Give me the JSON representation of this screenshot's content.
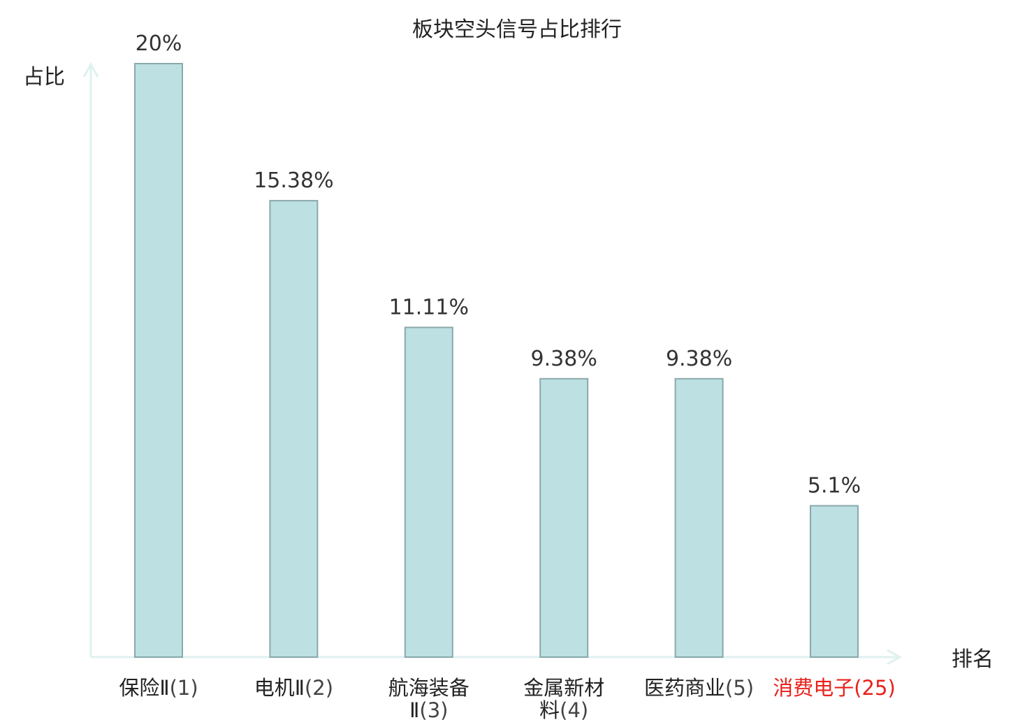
{
  "chart_data": {
    "type": "bar",
    "title": "板块空头信号占比排行",
    "xlabel": "排名",
    "ylabel": "占比",
    "categories": [
      {
        "name_lines": [
          "保险Ⅱ"
        ],
        "rank": "(1)",
        "highlight": false
      },
      {
        "name_lines": [
          "电机Ⅱ"
        ],
        "rank": "(2)",
        "highlight": false
      },
      {
        "name_lines": [
          "航海装备",
          "Ⅱ"
        ],
        "rank": "(3)",
        "highlight": false
      },
      {
        "name_lines": [
          "金属新材",
          "料"
        ],
        "rank": "(4)",
        "highlight": false
      },
      {
        "name_lines": [
          "医药商业"
        ],
        "rank": "(5)",
        "highlight": false
      },
      {
        "name_lines": [
          "消费电子"
        ],
        "rank": "(25)",
        "highlight": true
      }
    ],
    "values": [
      20,
      15.38,
      11.11,
      9.38,
      9.38,
      5.1
    ],
    "value_labels": [
      "20%",
      "15.38%",
      "11.11%",
      "9.38%",
      "9.38%",
      "5.1%"
    ],
    "ylim": [
      0,
      20
    ],
    "grid": false,
    "colors": {
      "bar_fill": "#bde0e2",
      "bar_stroke": "#8aa9ab",
      "axis": "#dff1ef",
      "highlight": "#e8211b"
    }
  }
}
